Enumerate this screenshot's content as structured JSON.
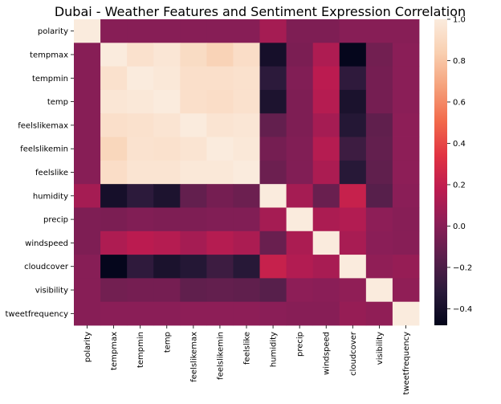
{
  "chart_data": {
    "type": "heatmap",
    "title": "Dubai - Weather Features and Sentiment Expression Correlation",
    "xlabel": "",
    "ylabel": "",
    "labels": [
      "polarity",
      "tempmax",
      "tempmin",
      "temp",
      "feelslikemax",
      "feelslikemin",
      "feelslike",
      "humidity",
      "precip",
      "windspeed",
      "cloudcover",
      "visibility",
      "tweetfrequency"
    ],
    "matrix": [
      [
        1.0,
        0.0,
        0.0,
        0.0,
        0.0,
        0.0,
        0.0,
        0.1,
        -0.03,
        -0.03,
        0.0,
        0.0,
        0.0
      ],
      [
        0.0,
        1.0,
        0.94,
        0.97,
        0.91,
        0.86,
        0.92,
        -0.4,
        -0.04,
        0.13,
        -0.47,
        -0.07,
        0.01
      ],
      [
        0.0,
        0.94,
        1.0,
        0.98,
        0.93,
        0.93,
        0.94,
        -0.31,
        -0.02,
        0.17,
        -0.3,
        -0.06,
        0.01
      ],
      [
        0.0,
        0.97,
        0.98,
        1.0,
        0.93,
        0.92,
        0.94,
        -0.37,
        -0.03,
        0.15,
        -0.38,
        -0.06,
        0.01
      ],
      [
        0.0,
        0.93,
        0.94,
        0.96,
        1.0,
        0.96,
        0.97,
        -0.12,
        -0.03,
        0.1,
        -0.34,
        -0.13,
        0.02
      ],
      [
        0.0,
        0.88,
        0.95,
        0.94,
        0.96,
        1.0,
        0.98,
        -0.06,
        -0.02,
        0.15,
        -0.25,
        -0.12,
        0.02
      ],
      [
        0.0,
        0.92,
        0.96,
        0.96,
        0.98,
        0.98,
        1.0,
        -0.09,
        -0.02,
        0.12,
        -0.33,
        -0.13,
        0.02
      ],
      [
        0.1,
        -0.4,
        -0.31,
        -0.37,
        -0.12,
        -0.06,
        -0.09,
        1.0,
        0.1,
        -0.1,
        0.22,
        -0.16,
        0.01
      ],
      [
        -0.03,
        -0.04,
        -0.02,
        -0.03,
        -0.03,
        -0.02,
        -0.02,
        0.1,
        1.0,
        0.12,
        0.14,
        0.02,
        0.0
      ],
      [
        -0.03,
        0.13,
        0.17,
        0.15,
        0.1,
        0.15,
        0.12,
        -0.1,
        0.12,
        1.0,
        0.11,
        0.01,
        0.0
      ],
      [
        0.0,
        -0.47,
        -0.3,
        -0.38,
        -0.34,
        -0.25,
        -0.33,
        0.22,
        0.14,
        0.11,
        1.0,
        0.03,
        0.05
      ],
      [
        0.0,
        -0.07,
        -0.06,
        -0.06,
        -0.13,
        -0.12,
        -0.13,
        -0.16,
        0.02,
        0.01,
        0.03,
        1.0,
        0.03
      ],
      [
        0.0,
        0.01,
        0.01,
        0.01,
        0.02,
        0.02,
        0.02,
        0.01,
        0.0,
        0.0,
        0.05,
        0.03,
        1.0
      ]
    ],
    "colorbar": {
      "vmin": -0.48,
      "vmax": 1.0,
      "ticks": [
        -0.4,
        -0.2,
        0.0,
        0.2,
        0.4,
        0.6,
        0.8,
        1.0
      ],
      "tick_labels": [
        "−0.4",
        "−0.2",
        "0.0",
        "0.2",
        "0.4",
        "0.6",
        "0.8",
        "1.0"
      ],
      "colormap": "rocket",
      "colors": [
        "#03051a",
        "#2a1a3a",
        "#5a1f4c",
        "#8b1e57",
        "#bd1b50",
        "#e13342",
        "#f26a4b",
        "#f5a07a",
        "#f9cfb0",
        "#faebdd"
      ]
    }
  }
}
